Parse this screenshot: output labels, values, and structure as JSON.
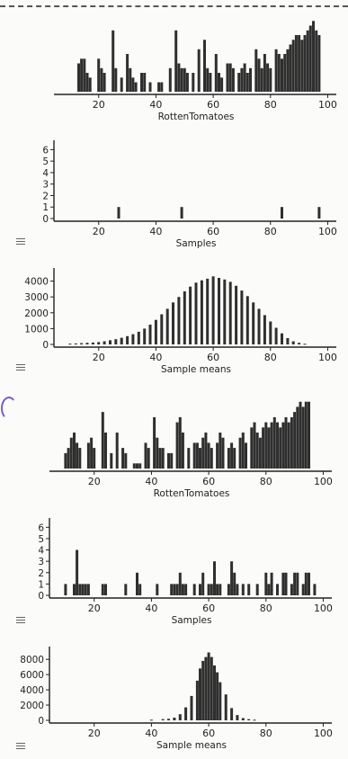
{
  "colors": {
    "bar": "#2f2f2f",
    "axis": "#222222",
    "text": "#222222",
    "paper": "#fbfbf9"
  },
  "chart_data": [
    {
      "type": "bar",
      "xlabel": "RottenTomatoes",
      "xticks": [
        20,
        40,
        60,
        80,
        100
      ],
      "xlim": [
        5,
        103
      ],
      "ylim": [
        0,
        16
      ],
      "bins": [
        {
          "x": 13,
          "y": 6
        },
        {
          "x": 14,
          "y": 7
        },
        {
          "x": 15,
          "y": 7
        },
        {
          "x": 16,
          "y": 4
        },
        {
          "x": 17,
          "y": 3
        },
        {
          "x": 20,
          "y": 7
        },
        {
          "x": 21,
          "y": 5
        },
        {
          "x": 22,
          "y": 4
        },
        {
          "x": 25,
          "y": 13
        },
        {
          "x": 26,
          "y": 5
        },
        {
          "x": 28,
          "y": 3
        },
        {
          "x": 30,
          "y": 8
        },
        {
          "x": 31,
          "y": 5
        },
        {
          "x": 32,
          "y": 3
        },
        {
          "x": 33,
          "y": 2
        },
        {
          "x": 35,
          "y": 4
        },
        {
          "x": 36,
          "y": 4
        },
        {
          "x": 38,
          "y": 2
        },
        {
          "x": 41,
          "y": 2
        },
        {
          "x": 42,
          "y": 2
        },
        {
          "x": 45,
          "y": 5
        },
        {
          "x": 47,
          "y": 13
        },
        {
          "x": 48,
          "y": 6
        },
        {
          "x": 49,
          "y": 5
        },
        {
          "x": 50,
          "y": 5
        },
        {
          "x": 51,
          "y": 4
        },
        {
          "x": 53,
          "y": 4
        },
        {
          "x": 55,
          "y": 9
        },
        {
          "x": 57,
          "y": 11
        },
        {
          "x": 58,
          "y": 5
        },
        {
          "x": 59,
          "y": 4
        },
        {
          "x": 61,
          "y": 8
        },
        {
          "x": 62,
          "y": 4
        },
        {
          "x": 63,
          "y": 3
        },
        {
          "x": 65,
          "y": 6
        },
        {
          "x": 66,
          "y": 6
        },
        {
          "x": 67,
          "y": 5
        },
        {
          "x": 69,
          "y": 4
        },
        {
          "x": 70,
          "y": 5
        },
        {
          "x": 71,
          "y": 6
        },
        {
          "x": 72,
          "y": 4
        },
        {
          "x": 73,
          "y": 5
        },
        {
          "x": 75,
          "y": 9
        },
        {
          "x": 76,
          "y": 7
        },
        {
          "x": 77,
          "y": 5
        },
        {
          "x": 78,
          "y": 8
        },
        {
          "x": 79,
          "y": 6
        },
        {
          "x": 80,
          "y": 5
        },
        {
          "x": 82,
          "y": 9
        },
        {
          "x": 83,
          "y": 8
        },
        {
          "x": 84,
          "y": 7
        },
        {
          "x": 85,
          "y": 8
        },
        {
          "x": 86,
          "y": 9
        },
        {
          "x": 87,
          "y": 10
        },
        {
          "x": 88,
          "y": 11
        },
        {
          "x": 89,
          "y": 12
        },
        {
          "x": 90,
          "y": 12
        },
        {
          "x": 91,
          "y": 11
        },
        {
          "x": 92,
          "y": 12
        },
        {
          "x": 93,
          "y": 13
        },
        {
          "x": 94,
          "y": 14
        },
        {
          "x": 95,
          "y": 15
        },
        {
          "x": 96,
          "y": 13
        },
        {
          "x": 97,
          "y": 12
        }
      ]
    },
    {
      "type": "bar",
      "xlabel": "Samples",
      "xticks": [
        20,
        40,
        60,
        80,
        100
      ],
      "yticks": [
        0,
        1,
        2,
        3,
        4,
        5,
        6
      ],
      "xlim": [
        5,
        103
      ],
      "ylim": [
        0,
        6.5
      ],
      "bins": [
        {
          "x": 27,
          "y": 1
        },
        {
          "x": 49,
          "y": 1
        },
        {
          "x": 84,
          "y": 1
        },
        {
          "x": 97,
          "y": 1
        }
      ]
    },
    {
      "type": "bar",
      "xlabel": "Sample means",
      "xticks": [
        20,
        40,
        60,
        80,
        100
      ],
      "yticks": [
        0,
        1000,
        2000,
        3000,
        4000
      ],
      "xlim": [
        5,
        103
      ],
      "ylim": [
        0,
        4600
      ],
      "bins": [
        {
          "x": 10,
          "y": 50
        },
        {
          "x": 12,
          "y": 60
        },
        {
          "x": 14,
          "y": 80
        },
        {
          "x": 16,
          "y": 100
        },
        {
          "x": 18,
          "y": 120
        },
        {
          "x": 20,
          "y": 150
        },
        {
          "x": 22,
          "y": 200
        },
        {
          "x": 24,
          "y": 260
        },
        {
          "x": 26,
          "y": 330
        },
        {
          "x": 28,
          "y": 420
        },
        {
          "x": 30,
          "y": 520
        },
        {
          "x": 32,
          "y": 650
        },
        {
          "x": 34,
          "y": 800
        },
        {
          "x": 36,
          "y": 1000
        },
        {
          "x": 38,
          "y": 1250
        },
        {
          "x": 40,
          "y": 1550
        },
        {
          "x": 42,
          "y": 1900
        },
        {
          "x": 44,
          "y": 2250
        },
        {
          "x": 46,
          "y": 2650
        },
        {
          "x": 48,
          "y": 3000
        },
        {
          "x": 50,
          "y": 3350
        },
        {
          "x": 52,
          "y": 3650
        },
        {
          "x": 54,
          "y": 3900
        },
        {
          "x": 56,
          "y": 4050
        },
        {
          "x": 58,
          "y": 4150
        },
        {
          "x": 60,
          "y": 4300
        },
        {
          "x": 62,
          "y": 4200
        },
        {
          "x": 64,
          "y": 4100
        },
        {
          "x": 66,
          "y": 3950
        },
        {
          "x": 68,
          "y": 3700
        },
        {
          "x": 70,
          "y": 3400
        },
        {
          "x": 72,
          "y": 3050
        },
        {
          "x": 74,
          "y": 2650
        },
        {
          "x": 76,
          "y": 2250
        },
        {
          "x": 78,
          "y": 1850
        },
        {
          "x": 80,
          "y": 1450
        },
        {
          "x": 82,
          "y": 1050
        },
        {
          "x": 84,
          "y": 700
        },
        {
          "x": 86,
          "y": 400
        },
        {
          "x": 88,
          "y": 200
        },
        {
          "x": 90,
          "y": 100
        },
        {
          "x": 92,
          "y": 40
        }
      ]
    },
    {
      "type": "bar",
      "xlabel": "RottenTomatoes",
      "xticks": [
        20,
        40,
        60,
        80,
        100
      ],
      "xlim": [
        5,
        103
      ],
      "ylim": [
        0,
        14
      ],
      "bins": [
        {
          "x": 10,
          "y": 3
        },
        {
          "x": 11,
          "y": 4
        },
        {
          "x": 12,
          "y": 6
        },
        {
          "x": 13,
          "y": 7
        },
        {
          "x": 14,
          "y": 5
        },
        {
          "x": 15,
          "y": 4
        },
        {
          "x": 18,
          "y": 5
        },
        {
          "x": 19,
          "y": 6
        },
        {
          "x": 20,
          "y": 4
        },
        {
          "x": 23,
          "y": 11
        },
        {
          "x": 24,
          "y": 7
        },
        {
          "x": 26,
          "y": 3
        },
        {
          "x": 28,
          "y": 7
        },
        {
          "x": 30,
          "y": 4
        },
        {
          "x": 31,
          "y": 3
        },
        {
          "x": 34,
          "y": 1
        },
        {
          "x": 35,
          "y": 1
        },
        {
          "x": 36,
          "y": 1
        },
        {
          "x": 38,
          "y": 5
        },
        {
          "x": 39,
          "y": 4
        },
        {
          "x": 41,
          "y": 10
        },
        {
          "x": 42,
          "y": 6
        },
        {
          "x": 43,
          "y": 4
        },
        {
          "x": 44,
          "y": 4
        },
        {
          "x": 46,
          "y": 3
        },
        {
          "x": 47,
          "y": 3
        },
        {
          "x": 49,
          "y": 9
        },
        {
          "x": 50,
          "y": 10
        },
        {
          "x": 51,
          "y": 7
        },
        {
          "x": 53,
          "y": 4
        },
        {
          "x": 55,
          "y": 5
        },
        {
          "x": 56,
          "y": 5
        },
        {
          "x": 57,
          "y": 4
        },
        {
          "x": 58,
          "y": 6
        },
        {
          "x": 59,
          "y": 7
        },
        {
          "x": 60,
          "y": 5
        },
        {
          "x": 61,
          "y": 4
        },
        {
          "x": 63,
          "y": 5
        },
        {
          "x": 64,
          "y": 7
        },
        {
          "x": 65,
          "y": 6
        },
        {
          "x": 67,
          "y": 4
        },
        {
          "x": 68,
          "y": 5
        },
        {
          "x": 69,
          "y": 4
        },
        {
          "x": 71,
          "y": 6
        },
        {
          "x": 72,
          "y": 7
        },
        {
          "x": 73,
          "y": 5
        },
        {
          "x": 75,
          "y": 8
        },
        {
          "x": 76,
          "y": 9
        },
        {
          "x": 77,
          "y": 7
        },
        {
          "x": 78,
          "y": 6
        },
        {
          "x": 79,
          "y": 8
        },
        {
          "x": 80,
          "y": 9
        },
        {
          "x": 81,
          "y": 8
        },
        {
          "x": 82,
          "y": 9
        },
        {
          "x": 83,
          "y": 10
        },
        {
          "x": 84,
          "y": 9
        },
        {
          "x": 85,
          "y": 8
        },
        {
          "x": 86,
          "y": 9
        },
        {
          "x": 87,
          "y": 10
        },
        {
          "x": 88,
          "y": 9
        },
        {
          "x": 89,
          "y": 10
        },
        {
          "x": 90,
          "y": 11
        },
        {
          "x": 91,
          "y": 12
        },
        {
          "x": 92,
          "y": 13
        },
        {
          "x": 93,
          "y": 12
        },
        {
          "x": 94,
          "y": 13
        },
        {
          "x": 95,
          "y": 13
        }
      ]
    },
    {
      "type": "bar",
      "xlabel": "Samples",
      "xticks": [
        20,
        40,
        60,
        80,
        100
      ],
      "yticks": [
        0,
        1,
        2,
        3,
        4,
        5,
        6
      ],
      "xlim": [
        5,
        103
      ],
      "ylim": [
        0,
        6.5
      ],
      "bins": [
        {
          "x": 10,
          "y": 1
        },
        {
          "x": 13,
          "y": 1
        },
        {
          "x": 14,
          "y": 4
        },
        {
          "x": 15,
          "y": 1
        },
        {
          "x": 16,
          "y": 1
        },
        {
          "x": 17,
          "y": 1
        },
        {
          "x": 18,
          "y": 1
        },
        {
          "x": 23,
          "y": 1
        },
        {
          "x": 24,
          "y": 1
        },
        {
          "x": 31,
          "y": 1
        },
        {
          "x": 35,
          "y": 2
        },
        {
          "x": 36,
          "y": 1
        },
        {
          "x": 42,
          "y": 1
        },
        {
          "x": 47,
          "y": 1
        },
        {
          "x": 48,
          "y": 1
        },
        {
          "x": 49,
          "y": 1
        },
        {
          "x": 50,
          "y": 2
        },
        {
          "x": 51,
          "y": 1
        },
        {
          "x": 52,
          "y": 1
        },
        {
          "x": 55,
          "y": 1
        },
        {
          "x": 57,
          "y": 1
        },
        {
          "x": 58,
          "y": 2
        },
        {
          "x": 60,
          "y": 1
        },
        {
          "x": 61,
          "y": 1
        },
        {
          "x": 62,
          "y": 3
        },
        {
          "x": 63,
          "y": 1
        },
        {
          "x": 64,
          "y": 1
        },
        {
          "x": 67,
          "y": 1
        },
        {
          "x": 68,
          "y": 3
        },
        {
          "x": 69,
          "y": 2
        },
        {
          "x": 70,
          "y": 1
        },
        {
          "x": 72,
          "y": 1
        },
        {
          "x": 74,
          "y": 1
        },
        {
          "x": 77,
          "y": 1
        },
        {
          "x": 80,
          "y": 2
        },
        {
          "x": 81,
          "y": 1
        },
        {
          "x": 82,
          "y": 2
        },
        {
          "x": 84,
          "y": 1
        },
        {
          "x": 86,
          "y": 2
        },
        {
          "x": 87,
          "y": 2
        },
        {
          "x": 89,
          "y": 1
        },
        {
          "x": 90,
          "y": 2
        },
        {
          "x": 91,
          "y": 2
        },
        {
          "x": 93,
          "y": 1
        },
        {
          "x": 94,
          "y": 2
        },
        {
          "x": 95,
          "y": 2
        },
        {
          "x": 97,
          "y": 1
        }
      ]
    },
    {
      "type": "bar",
      "xlabel": "Sample means",
      "xticks": [
        20,
        40,
        60,
        80,
        100
      ],
      "yticks": [
        0,
        2000,
        4000,
        6000,
        8000
      ],
      "xlim": [
        5,
        103
      ],
      "ylim": [
        0,
        9200
      ],
      "bins": [
        {
          "x": 40,
          "y": 80
        },
        {
          "x": 44,
          "y": 150
        },
        {
          "x": 46,
          "y": 200
        },
        {
          "x": 48,
          "y": 350
        },
        {
          "x": 50,
          "y": 800
        },
        {
          "x": 52,
          "y": 1700
        },
        {
          "x": 54,
          "y": 3200
        },
        {
          "x": 56,
          "y": 5200
        },
        {
          "x": 57,
          "y": 6800
        },
        {
          "x": 58,
          "y": 7800
        },
        {
          "x": 59,
          "y": 8300
        },
        {
          "x": 60,
          "y": 8900
        },
        {
          "x": 61,
          "y": 8300
        },
        {
          "x": 62,
          "y": 7200
        },
        {
          "x": 63,
          "y": 6300
        },
        {
          "x": 64,
          "y": 5000
        },
        {
          "x": 66,
          "y": 3400
        },
        {
          "x": 68,
          "y": 1600
        },
        {
          "x": 70,
          "y": 700
        },
        {
          "x": 72,
          "y": 300
        },
        {
          "x": 74,
          "y": 150
        },
        {
          "x": 76,
          "y": 80
        }
      ]
    }
  ]
}
